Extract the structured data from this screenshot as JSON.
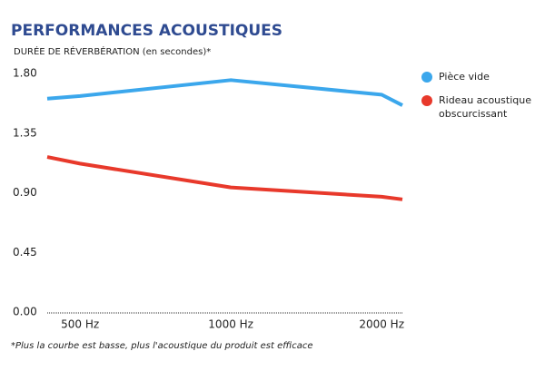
{
  "chart_data": {
    "type": "line",
    "title": "PERFORMANCES ACOUSTIQUES",
    "subtitle": "DURÉE DE RÉVERBÉRATION (en secondes)*",
    "footnote": "*Plus la courbe est basse, plus l'acoustique du produit est efficace",
    "x": [
      430,
      500,
      1000,
      2000,
      2200
    ],
    "xlim": [
      430,
      2200
    ],
    "xscale": "log",
    "xticks": [
      {
        "value": 500,
        "label": "500 Hz"
      },
      {
        "value": 1000,
        "label": "1000 Hz"
      },
      {
        "value": 2000,
        "label": "2000 Hz"
      }
    ],
    "ylim": [
      0,
      1.8
    ],
    "yticks": [
      {
        "value": 0,
        "label": "0.00"
      },
      {
        "value": 0.45,
        "label": "0.45"
      },
      {
        "value": 0.9,
        "label": "0.90"
      },
      {
        "value": 1.35,
        "label": "1.35"
      },
      {
        "value": 1.8,
        "label": "1.80"
      }
    ],
    "legend": "right",
    "series": [
      {
        "name": "Pièce vide",
        "color": "#3ba7ec",
        "values": [
          1.61,
          1.63,
          1.75,
          1.64,
          1.56
        ]
      },
      {
        "name": "Rideau acoustique obscurcissant",
        "color": "#e8392b",
        "values": [
          1.17,
          1.12,
          0.94,
          0.87,
          0.85
        ]
      }
    ]
  }
}
